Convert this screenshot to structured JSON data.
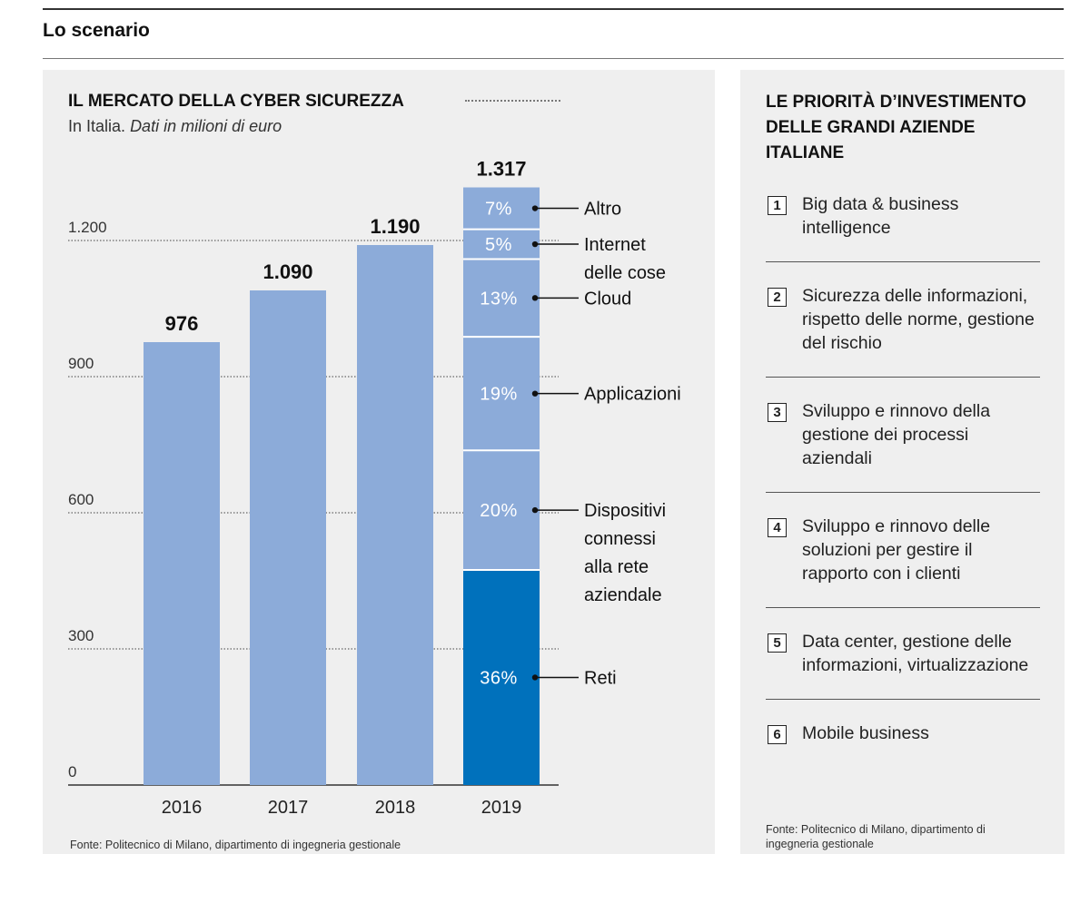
{
  "header": {
    "section_title": "Lo scenario"
  },
  "left_panel": {
    "title": "IL MERCATO DELLA CYBER SICUREZZA",
    "subtitle_plain": "In Italia.",
    "subtitle_italic": "Dati in milioni di euro",
    "source": "Fonte: Politecnico di Milano, dipartimento di ingegneria gestionale"
  },
  "chart_data": {
    "type": "bar",
    "title": "IL MERCATO DELLA CYBER SICUREZZA",
    "subtitle": "In Italia. Dati in milioni di euro",
    "categories": [
      "2016",
      "2017",
      "2018",
      "2019"
    ],
    "values": [
      976,
      1090,
      1190,
      1317
    ],
    "value_labels": [
      "976",
      "1.090",
      "1.190",
      "1.317"
    ],
    "ylim": [
      0,
      1317
    ],
    "yticks": [
      0,
      300,
      600,
      900,
      1200
    ],
    "ytick_labels": [
      "0",
      "300",
      "600",
      "900",
      "1.200"
    ],
    "grid": "dotted horizontal",
    "colors": {
      "bar": "#8cabd9",
      "highlight": "#0071bc",
      "segment_text": "#ffffff"
    },
    "breakdown_2019": {
      "category": "2019",
      "segments": [
        {
          "name": "Reti",
          "percent": 36,
          "label": "36%",
          "color": "#0071bc"
        },
        {
          "name": "Dispositivi connessi alla rete aziendale",
          "lines": [
            "Dispositivi",
            "connessi",
            "alla rete",
            "aziendale"
          ],
          "percent": 20,
          "label": "20%",
          "color": "#8cabd9"
        },
        {
          "name": "Applicazioni",
          "lines": [
            "Applicazioni"
          ],
          "percent": 19,
          "label": "19%",
          "color": "#8cabd9"
        },
        {
          "name": "Cloud",
          "lines": [
            "Cloud"
          ],
          "percent": 13,
          "label": "13%",
          "color": "#8cabd9"
        },
        {
          "name": "Internet delle cose",
          "lines": [
            "Internet",
            "delle cose"
          ],
          "percent": 5,
          "label": "5%",
          "color": "#8cabd9"
        },
        {
          "name": "Altro",
          "lines": [
            "Altro"
          ],
          "percent": 7,
          "label": "7%",
          "color": "#8cabd9"
        }
      ]
    }
  },
  "right_panel": {
    "title": "LE PRIORITÀ D’INVESTIMENTO DELLE GRANDI AZIENDE ITALIANE",
    "items": [
      {
        "num": "1",
        "text": "Big data & business intelligence"
      },
      {
        "num": "2",
        "text": "Sicurezza delle informazioni, rispetto delle norme, gestione del rischio"
      },
      {
        "num": "3",
        "text": "Sviluppo e rinnovo della gestione dei processi aziendali"
      },
      {
        "num": "4",
        "text": "Sviluppo e rinnovo delle soluzioni per gestire il rapporto con i clienti"
      },
      {
        "num": "5",
        "text": "Data center, gestione delle informazioni, virtualizzazione"
      },
      {
        "num": "6",
        "text": "Mobile business"
      }
    ],
    "source": "Fonte: Politecnico di Milano, dipartimento di ingegneria gestionale"
  }
}
